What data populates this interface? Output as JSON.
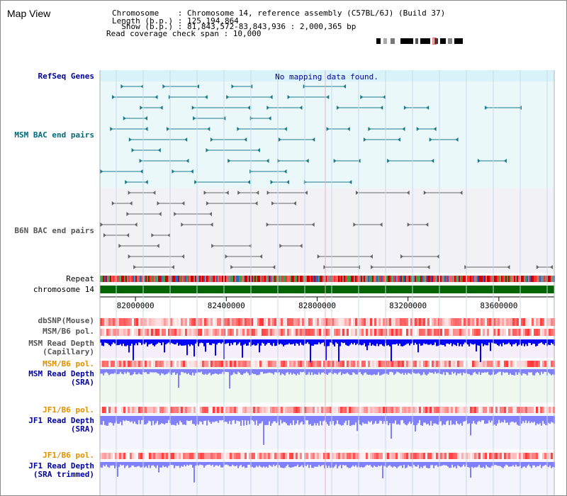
{
  "page": {
    "title": "Map View"
  },
  "info": {
    "chromosome": "Chromosome    : Chromosome 14, reference assembly (C57BL/6J) (Build 37)",
    "length": "Length (b.p.) : 125,194,864",
    "show": "  Show (b.p.) : 81,843,572-83,843,936 : 2,000,365 bp",
    "coverage": "Read coverage check span : 10,000"
  },
  "tracks": {
    "refseq": {
      "label": "RefSeq Genes",
      "message": "No mapping data found."
    },
    "msm_bac": {
      "label": "MSM BAC end pairs"
    },
    "b6n_bac": {
      "label": "B6N BAC end pairs"
    },
    "repeat": {
      "label": "Repeat"
    },
    "chromosome": {
      "label": "chromosome 14"
    },
    "dbsnp": {
      "label": "dbSNP(Mouse)"
    },
    "msm_pol_1": {
      "label": "MSM/B6 pol."
    },
    "msm_depth_cap": {
      "label1": "MSM Read Depth",
      "label2": "(Capillary)"
    },
    "msm_pol_2": {
      "label": "MSM/B6 pol."
    },
    "msm_depth_sra": {
      "label1": "MSM Read Depth",
      "label2": "(SRA)"
    },
    "jf1_pol_1": {
      "label": "JF1/B6 pol."
    },
    "jf1_depth_sra": {
      "label1": "JF1 Read Depth",
      "label2": "(SRA)"
    },
    "jf1_pol_2": {
      "label": "JF1/B6 pol."
    },
    "jf1_depth_trim": {
      "label1": "JF1 Read Depth",
      "label2": "(SRA trimmed)"
    }
  },
  "axis": {
    "ticks": [
      "82000000",
      "82400000",
      "82800000",
      "83200000",
      "83600000"
    ],
    "tick_values": [
      82000000,
      82400000,
      82800000,
      83200000,
      83600000
    ],
    "range": [
      81843572,
      83843936
    ]
  },
  "colors": {
    "msm_label": "#006a7a",
    "b6n_label": "#555555",
    "blue_label": "#0000a0",
    "orange_label": "#e09000",
    "chromosome_bar": "#006400",
    "depth_capillary": "#0000ff",
    "depth_sra": "#8080ff"
  }
}
